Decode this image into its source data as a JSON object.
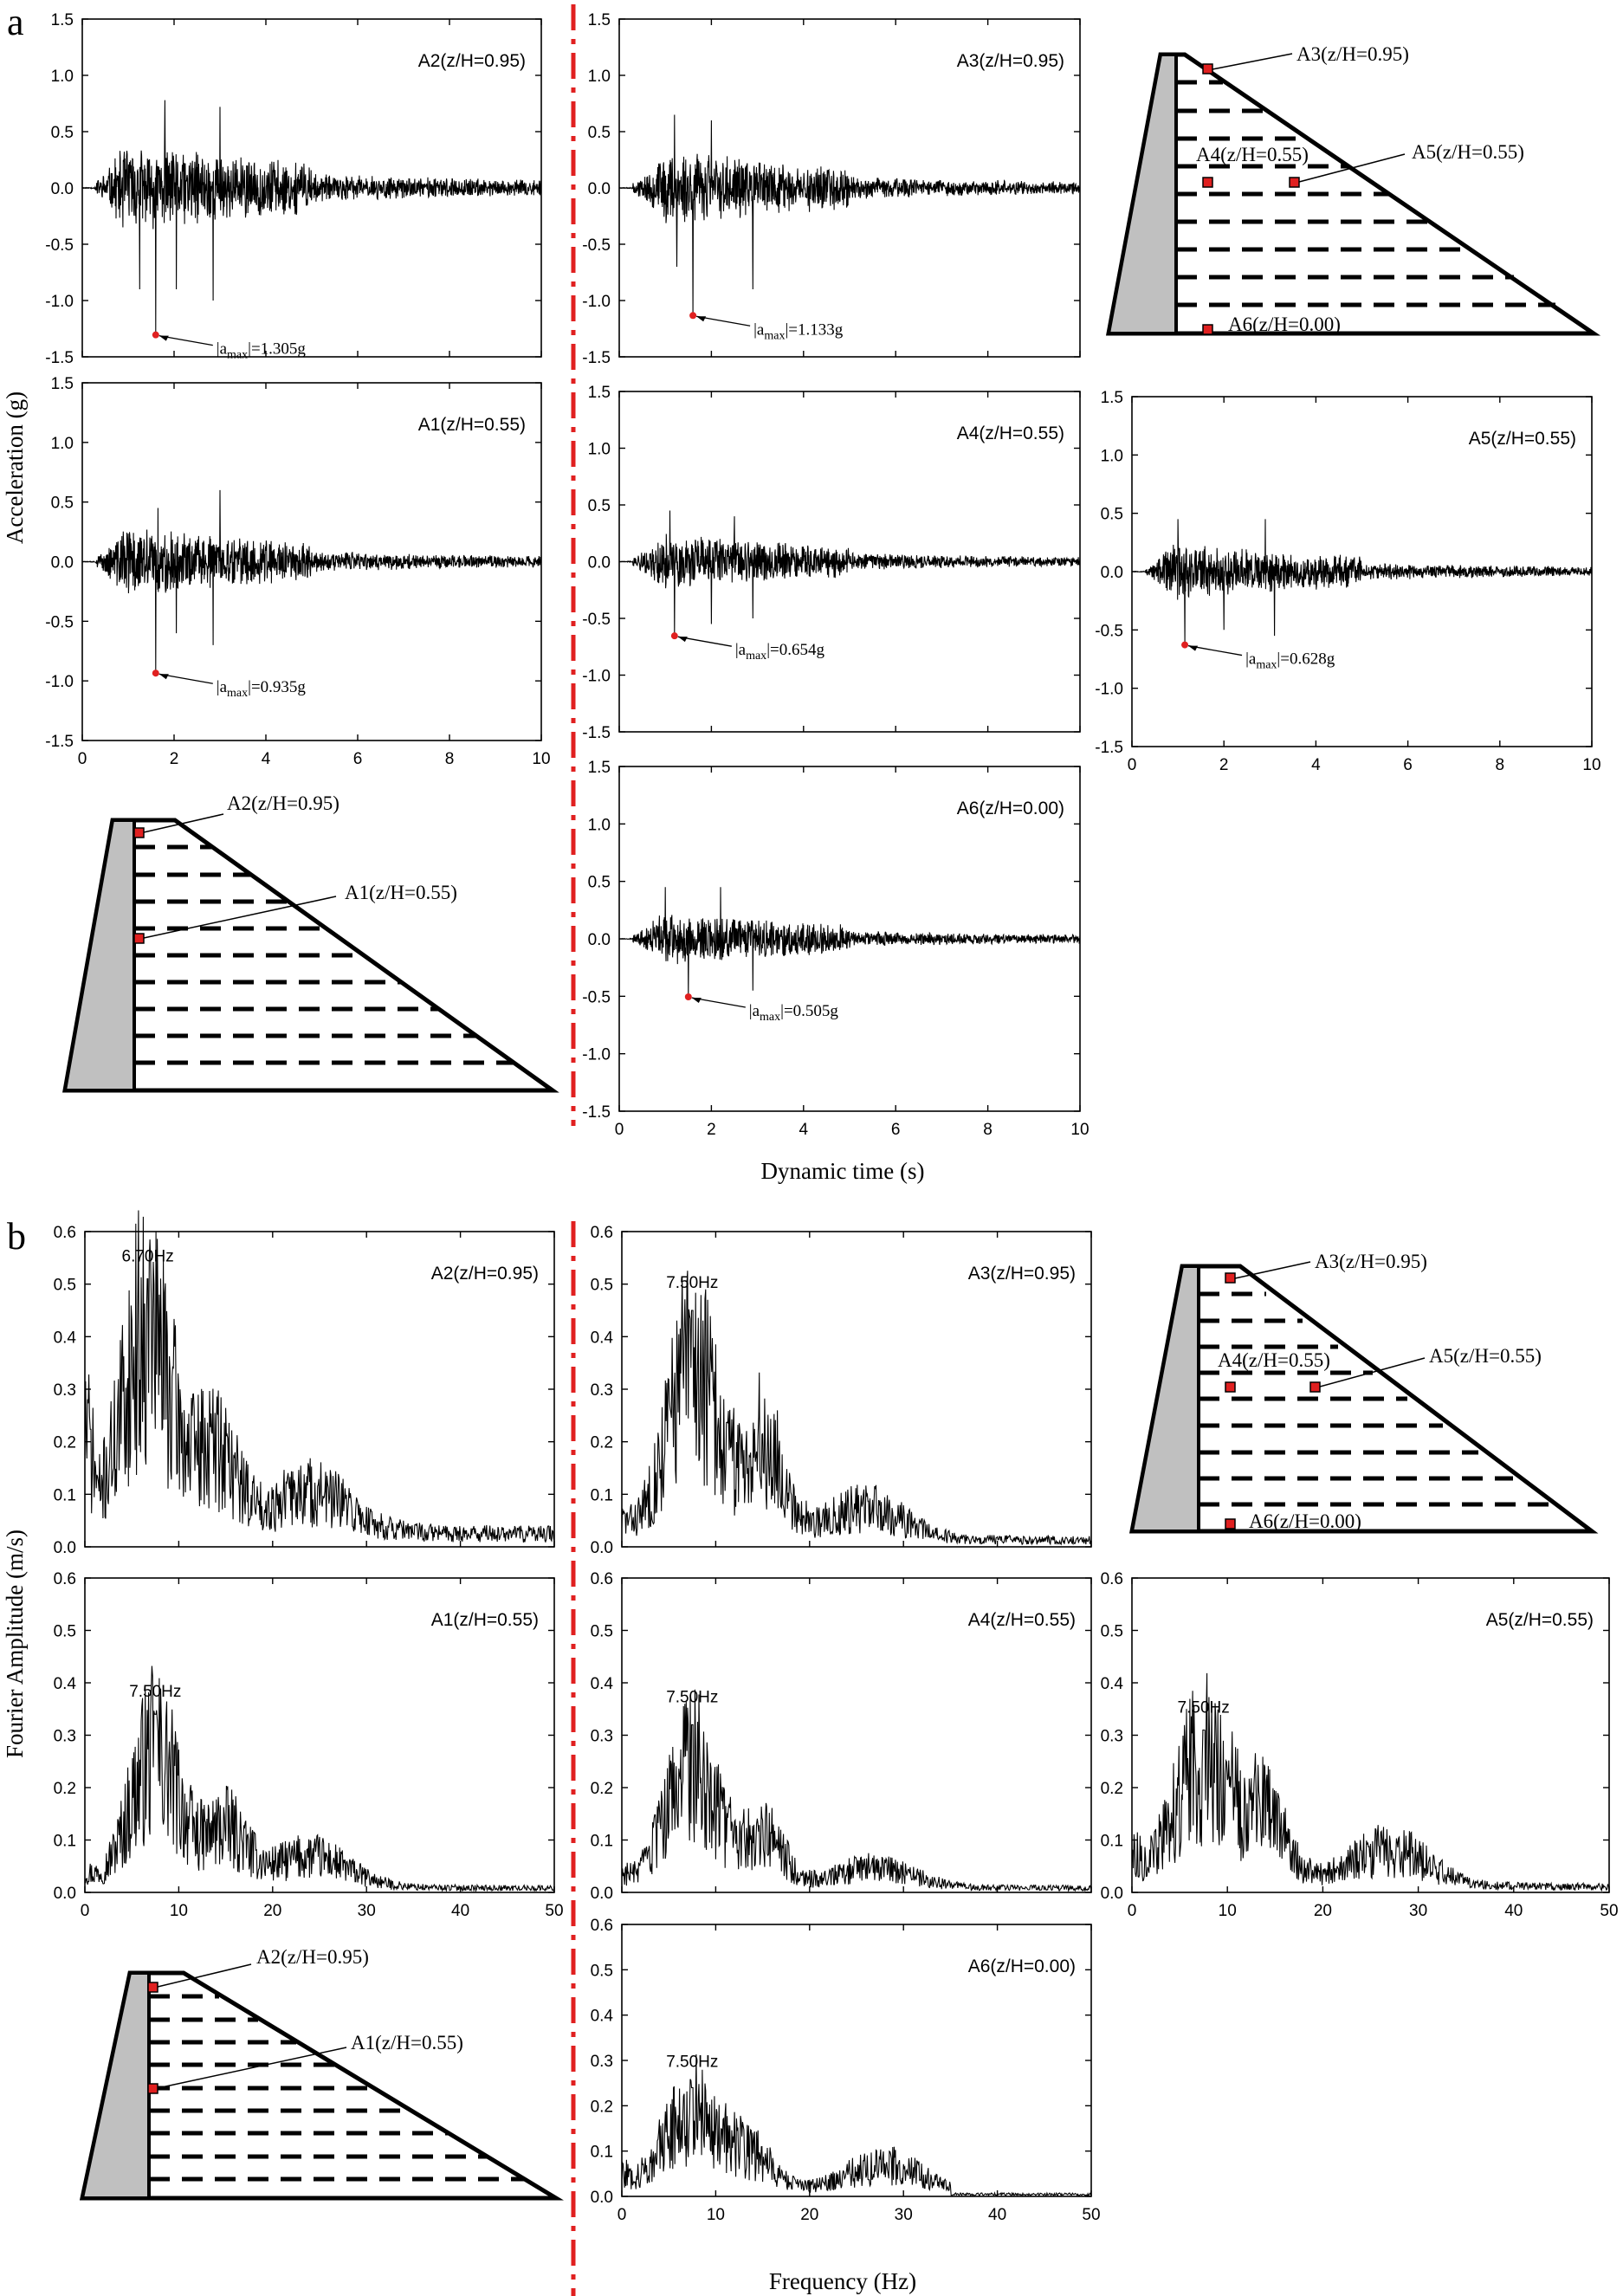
{
  "figure_a": {
    "letter": "a",
    "ylabel": "Acceleration (g)",
    "xlabel": "Dynamic time (s)",
    "diagram_labels": {
      "A1": "A1(z/H=0.55)",
      "A2": "A2(z/H=0.95)",
      "A3": "A3(z/H=0.95)",
      "A4": "A4(z/H=0.55)",
      "A5": "A5(z/H=0.55)",
      "A6": "A6(z/H=0.00)"
    }
  },
  "figure_b": {
    "letter": "b",
    "ylabel": "Fourier Amplitude (m/s)",
    "xlabel": "Frequency (Hz)",
    "diagram_labels": {
      "A1": "A1(z/H=0.55)",
      "A2": "A2(z/H=0.95)",
      "A3": "A3(z/H=0.95)",
      "A4": "A4(z/H=0.55)",
      "A5": "A5(z/H=0.55)",
      "A6": "A6(z/H=0.00)"
    }
  },
  "colors": {
    "trace": "#000000",
    "marker": "#e02020",
    "divider": "#e02020",
    "dam_fill": "#c0c0c0"
  },
  "chart_data": [
    {
      "id": "a-A2",
      "type": "line",
      "label": "A2(z/H=0.95)",
      "xlim": [
        0,
        10
      ],
      "ylim": [
        -1.5,
        1.5
      ],
      "xticks": [
        "0",
        "2",
        "4",
        "6",
        "8",
        "10"
      ],
      "yticks": [
        "-1.5",
        "-1.0",
        "-0.5",
        "0.0",
        "0.5",
        "1.0",
        "1.5"
      ],
      "show_xticks": false,
      "peak": {
        "x": 1.6,
        "y": -1.305,
        "label_main": "|a",
        "label_sub": "max",
        "label_end": "|=1.305g"
      },
      "signal": {
        "amp": 0.35,
        "decay": 0.18,
        "t_on": 0.9,
        "seed": 11,
        "spikes": [
          [
            1.25,
            -0.9
          ],
          [
            1.6,
            -1.305
          ],
          [
            2.05,
            -0.9
          ],
          [
            2.85,
            -1.0
          ],
          [
            3.0,
            0.72
          ],
          [
            1.8,
            0.78
          ]
        ]
      }
    },
    {
      "id": "a-A3",
      "type": "line",
      "label": "A3(z/H=0.95)",
      "xlim": [
        0,
        10
      ],
      "ylim": [
        -1.5,
        1.5
      ],
      "xticks": [
        "0",
        "2",
        "4",
        "6",
        "8",
        "10"
      ],
      "yticks": [
        "-1.5",
        "-1.0",
        "-0.5",
        "0.0",
        "0.5",
        "1.0",
        "1.5"
      ],
      "show_xticks": false,
      "peak": {
        "x": 1.6,
        "y": -1.133,
        "label_main": "|a",
        "label_sub": "max",
        "label_end": "|=1.133g"
      },
      "signal": {
        "amp": 0.3,
        "decay": 0.2,
        "t_on": 1.0,
        "seed": 23,
        "spikes": [
          [
            1.25,
            -0.7
          ],
          [
            1.6,
            -1.133
          ],
          [
            2.9,
            -0.9
          ],
          [
            1.2,
            0.65
          ],
          [
            2.0,
            0.6
          ]
        ]
      }
    },
    {
      "id": "a-A1",
      "type": "line",
      "label": "A1(z/H=0.55)",
      "xlim": [
        0,
        10
      ],
      "ylim": [
        -1.5,
        1.5
      ],
      "xticks": [
        "0",
        "2",
        "4",
        "6",
        "8",
        "10"
      ],
      "yticks": [
        "-1.5",
        "-1.0",
        "-0.5",
        "0.0",
        "0.5",
        "1.0",
        "1.5"
      ],
      "show_xticks": true,
      "peak": {
        "x": 1.6,
        "y": -0.935,
        "label_main": "|a",
        "label_sub": "max",
        "label_end": "|=0.935g"
      },
      "signal": {
        "amp": 0.26,
        "decay": 0.2,
        "t_on": 0.9,
        "seed": 37,
        "spikes": [
          [
            1.6,
            -0.935
          ],
          [
            2.05,
            -0.6
          ],
          [
            2.85,
            -0.7
          ],
          [
            3.0,
            0.6
          ],
          [
            1.65,
            0.45
          ]
        ]
      }
    },
    {
      "id": "a-A4",
      "type": "line",
      "label": "A4(z/H=0.55)",
      "xlim": [
        0,
        10
      ],
      "ylim": [
        -1.5,
        1.5
      ],
      "xticks": [
        "0",
        "2",
        "4",
        "6",
        "8",
        "10"
      ],
      "yticks": [
        "-1.5",
        "-1.0",
        "-0.5",
        "0.0",
        "0.5",
        "1.0",
        "1.5"
      ],
      "show_xticks": false,
      "peak": {
        "x": 1.2,
        "y": -0.654,
        "label_main": "|a",
        "label_sub": "max",
        "label_end": "|=0.654g"
      },
      "signal": {
        "amp": 0.22,
        "decay": 0.2,
        "t_on": 0.9,
        "seed": 41,
        "spikes": [
          [
            1.2,
            -0.654
          ],
          [
            2.0,
            -0.55
          ],
          [
            2.9,
            -0.5
          ],
          [
            1.1,
            0.45
          ],
          [
            2.5,
            0.4
          ]
        ]
      }
    },
    {
      "id": "a-A5",
      "type": "line",
      "label": "A5(z/H=0.55)",
      "xlim": [
        0,
        10
      ],
      "ylim": [
        -1.5,
        1.5
      ],
      "xticks": [
        "0",
        "2",
        "4",
        "6",
        "8",
        "10"
      ],
      "yticks": [
        "-1.5",
        "-1.0",
        "-0.5",
        "0.0",
        "0.5",
        "1.0",
        "1.5"
      ],
      "show_xticks": true,
      "peak": {
        "x": 1.15,
        "y": -0.628,
        "label_main": "|a",
        "label_sub": "max",
        "label_end": "|=0.628g"
      },
      "signal": {
        "amp": 0.22,
        "decay": 0.2,
        "t_on": 0.9,
        "seed": 53,
        "spikes": [
          [
            1.15,
            -0.628
          ],
          [
            2.0,
            -0.5
          ],
          [
            3.1,
            -0.55
          ],
          [
            1.0,
            0.45
          ],
          [
            2.9,
            0.45
          ]
        ]
      }
    },
    {
      "id": "a-A6",
      "type": "line",
      "label": "A6(z/H=0.00)",
      "xlim": [
        0,
        10
      ],
      "ylim": [
        -1.5,
        1.5
      ],
      "xticks": [
        "0",
        "2",
        "4",
        "6",
        "8",
        "10"
      ],
      "yticks": [
        "-1.5",
        "-1.0",
        "-0.5",
        "0.0",
        "0.5",
        "1.0",
        "1.5"
      ],
      "show_xticks": true,
      "peak": {
        "x": 1.5,
        "y": -0.505,
        "label_main": "|a",
        "label_sub": "max",
        "label_end": "|=0.505g"
      },
      "signal": {
        "amp": 0.2,
        "decay": 0.2,
        "t_on": 0.9,
        "seed": 67,
        "spikes": [
          [
            1.5,
            -0.505
          ],
          [
            2.9,
            -0.45
          ],
          [
            1.0,
            0.45
          ],
          [
            2.2,
            0.45
          ]
        ]
      }
    },
    {
      "id": "b-A2",
      "type": "line",
      "label": "A2(z/H=0.95)",
      "xlim": [
        0,
        50
      ],
      "ylim": [
        0,
        0.6
      ],
      "xticks": [
        "0",
        "10",
        "20",
        "30",
        "40",
        "50"
      ],
      "yticks": [
        "0.0",
        "0.1",
        "0.2",
        "0.3",
        "0.4",
        "0.5",
        "0.6"
      ],
      "show_xticks": false,
      "peak_label": {
        "x": 6.7,
        "y": 0.53,
        "text": "6.70Hz"
      },
      "spectrum": {
        "f0": 6.7,
        "peak": 0.51,
        "width": 2.6,
        "bump2": [
          14,
          0.2
        ],
        "bump3": [
          24,
          0.1
        ],
        "floor": 0.05,
        "tail": 0.03,
        "start": 0.25,
        "seed": 71
      }
    },
    {
      "id": "b-A3",
      "type": "line",
      "label": "A3(z/H=0.95)",
      "xlim": [
        0,
        50
      ],
      "ylim": [
        0,
        0.6
      ],
      "xticks": [
        "0",
        "10",
        "20",
        "30",
        "40",
        "50"
      ],
      "yticks": [
        "0.0",
        "0.1",
        "0.2",
        "0.3",
        "0.4",
        "0.5",
        "0.6"
      ],
      "show_xticks": false,
      "peak_label": {
        "x": 7.5,
        "y": 0.48,
        "text": "7.50Hz"
      },
      "spectrum": {
        "f0": 7.5,
        "peak": 0.45,
        "width": 2.6,
        "bump2": [
          15,
          0.24
        ],
        "bump3": [
          26,
          0.08
        ],
        "floor": 0.03,
        "tail": 0.015,
        "start": 0.02,
        "seed": 83
      }
    },
    {
      "id": "b-A1",
      "type": "line",
      "label": "A1(z/H=0.55)",
      "xlim": [
        0,
        50
      ],
      "ylim": [
        0,
        0.6
      ],
      "xticks": [
        "0",
        "10",
        "20",
        "30",
        "40",
        "50"
      ],
      "yticks": [
        "0.0",
        "0.1",
        "0.2",
        "0.3",
        "0.4",
        "0.5",
        "0.6"
      ],
      "show_xticks": true,
      "peak_label": {
        "x": 7.5,
        "y": 0.36,
        "text": "7.50Hz"
      },
      "spectrum": {
        "f0": 7.5,
        "peak": 0.34,
        "width": 2.6,
        "bump2": [
          15,
          0.14
        ],
        "bump3": [
          24,
          0.08
        ],
        "floor": 0.02,
        "tail": 0.01,
        "start": 0.02,
        "seed": 97
      }
    },
    {
      "id": "b-A4",
      "type": "line",
      "label": "A4(z/H=0.55)",
      "xlim": [
        0,
        50
      ],
      "ylim": [
        0,
        0.6
      ],
      "xticks": [
        "0",
        "10",
        "20",
        "30",
        "40",
        "50"
      ],
      "yticks": [
        "0.0",
        "0.1",
        "0.2",
        "0.3",
        "0.4",
        "0.5",
        "0.6"
      ],
      "show_xticks": false,
      "peak_label": {
        "x": 7.5,
        "y": 0.35,
        "text": "7.50Hz"
      },
      "spectrum": {
        "f0": 7.5,
        "peak": 0.32,
        "width": 2.6,
        "bump2": [
          15,
          0.13
        ],
        "bump3": [
          27,
          0.05
        ],
        "floor": 0.02,
        "tail": 0.01,
        "start": 0.02,
        "seed": 103
      }
    },
    {
      "id": "b-A5",
      "type": "line",
      "label": "A5(z/H=0.55)",
      "xlim": [
        0,
        50
      ],
      "ylim": [
        0,
        0.6
      ],
      "xticks": [
        "0",
        "10",
        "20",
        "30",
        "40",
        "50"
      ],
      "yticks": [
        "0.0",
        "0.1",
        "0.2",
        "0.3",
        "0.4",
        "0.5",
        "0.6"
      ],
      "show_xticks": true,
      "peak_label": {
        "x": 7.5,
        "y": 0.33,
        "text": "7.50Hz"
      },
      "spectrum": {
        "f0": 7.5,
        "peak": 0.31,
        "width": 2.8,
        "bump2": [
          14,
          0.17
        ],
        "bump3": [
          27,
          0.09
        ],
        "floor": 0.04,
        "tail": 0.012,
        "start": 0.05,
        "seed": 113
      }
    },
    {
      "id": "b-A6",
      "type": "line",
      "label": "A6(z/H=0.00)",
      "xlim": [
        0,
        50
      ],
      "ylim": [
        0,
        0.6
      ],
      "xticks": [
        "0",
        "10",
        "20",
        "30",
        "40",
        "50"
      ],
      "yticks": [
        "0.0",
        "0.1",
        "0.2",
        "0.3",
        "0.4",
        "0.5",
        "0.6"
      ],
      "show_xticks": true,
      "peak_label": {
        "x": 7.5,
        "y": 0.27,
        "text": "7.50Hz"
      },
      "spectrum": {
        "f0": 7.5,
        "peak": 0.24,
        "width": 2.8,
        "bump2": [
          14,
          0.1
        ],
        "bump3": [
          28,
          0.08
        ],
        "floor": 0.03,
        "tail": 0.008,
        "start": 0.03,
        "cutoff": 35,
        "seed": 127
      }
    }
  ]
}
